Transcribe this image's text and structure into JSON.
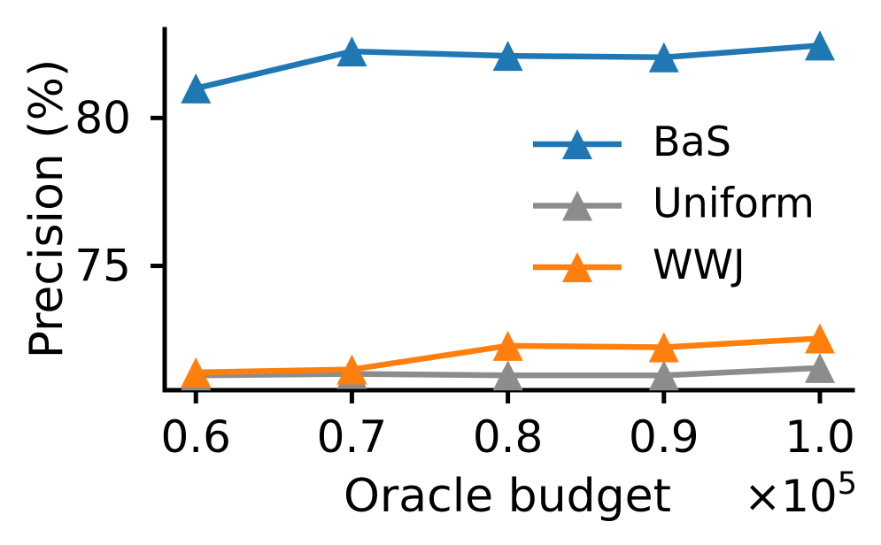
{
  "chart_data": {
    "type": "line",
    "title": "",
    "xlabel": "Oracle budget",
    "ylabel": "Precision (%)",
    "x_multiplier": {
      "base": "×10",
      "exponent": "5"
    },
    "x": [
      0.6,
      0.7,
      0.8,
      0.9,
      1.0
    ],
    "xtick_labels": [
      "0.6",
      "0.7",
      "0.8",
      "0.9",
      "1.0"
    ],
    "yticks": [
      75,
      80
    ],
    "ytick_labels": [
      "75",
      "80"
    ],
    "xlim": [
      0.58,
      1.021
    ],
    "ylim": [
      70.8,
      83.0
    ],
    "grid": false,
    "legend_position": "center-right",
    "marker": "triangle-up",
    "axis_color": "#000000",
    "series": [
      {
        "name": "BaS",
        "color": "#1f77b4",
        "marker": "triangle-up",
        "values": [
          81.0,
          82.25,
          82.1,
          82.05,
          82.45
        ]
      },
      {
        "name": "Uniform",
        "color": "#8c8c8c",
        "marker": "triangle-up",
        "values": [
          71.3,
          71.35,
          71.3,
          71.3,
          71.55
        ]
      },
      {
        "name": "WWJ",
        "color": "#ff7f0e",
        "marker": "triangle-up",
        "values": [
          71.4,
          71.5,
          72.3,
          72.25,
          72.55
        ]
      }
    ]
  }
}
